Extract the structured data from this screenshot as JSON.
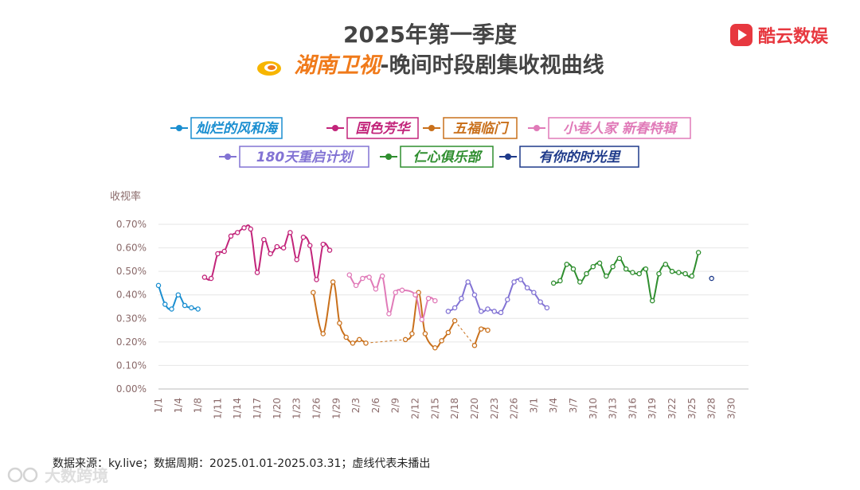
{
  "header": {
    "title_line1": "2025年第一季度",
    "channel_name": "湖南卫视",
    "title_rest": "-晚间时段剧集收视曲线"
  },
  "brand": {
    "name": "酷云数娱",
    "color": "#e7383f",
    "logo_icon": "play-icon"
  },
  "footer": {
    "text": "数据来源：ky.live；数据周期：2025.01.01-2025.03.31；虚线代表未播出"
  },
  "watermark": {
    "text": "大数跨境",
    "icon": "ring-logo-icon"
  },
  "chart_data": {
    "type": "line",
    "title": "2025年第一季度 湖南卫视-晚间时段剧集收视曲线",
    "ylabel": "收视率",
    "xlabel": "",
    "ylim": [
      0,
      0.7
    ],
    "y_ticks": [
      0,
      0.1,
      0.2,
      0.3,
      0.4,
      0.5,
      0.6,
      0.7
    ],
    "y_tick_labels": [
      "0.00%",
      "0.10%",
      "0.20%",
      "0.30%",
      "0.40%",
      "0.50%",
      "0.60%",
      "0.70%"
    ],
    "x_range": [
      0,
      89
    ],
    "x_ticks": [
      0,
      3,
      6,
      9,
      12,
      15,
      18,
      21,
      24,
      27,
      30,
      33,
      36,
      39,
      42,
      45,
      48,
      51,
      54,
      57,
      60,
      63,
      66,
      69,
      72,
      75,
      78,
      81,
      84,
      87
    ],
    "x_tick_labels": [
      "1/1",
      "1/4",
      "1/8",
      "1/11",
      "1/14",
      "1/17",
      "1/20",
      "1/23",
      "1/26",
      "1/29",
      "2/3",
      "2/6",
      "2/9",
      "2/12",
      "2/15",
      "2/18",
      "2/20",
      "2/23",
      "2/26",
      "3/1",
      "3/4",
      "3/7",
      "3/10",
      "3/13",
      "3/16",
      "3/19",
      "3/22",
      "3/25",
      "3/28",
      "3/30"
    ],
    "grid": true,
    "legend_position": "top",
    "series": [
      {
        "name": "灿烂的风和海",
        "color": "#1a8ed0",
        "points": [
          [
            0,
            0.44
          ],
          [
            1,
            0.36
          ],
          [
            2,
            0.34
          ],
          [
            3,
            0.4
          ],
          [
            4,
            0.355
          ],
          [
            5,
            0.345
          ],
          [
            6,
            0.34
          ]
        ]
      },
      {
        "name": "国色芳华",
        "color": "#c2247a",
        "points": [
          [
            7,
            0.475
          ],
          [
            8,
            0.47
          ],
          [
            9,
            0.575
          ],
          [
            10,
            0.585
          ],
          [
            11,
            0.65
          ],
          [
            12,
            0.665
          ],
          [
            13,
            0.685
          ],
          [
            14,
            0.68
          ],
          [
            15,
            0.495
          ],
          [
            16,
            0.635
          ],
          [
            17,
            0.575
          ],
          [
            18,
            0.605
          ],
          [
            19,
            0.6
          ],
          [
            20,
            0.665
          ],
          [
            21,
            0.55
          ],
          [
            22,
            0.645
          ],
          [
            23,
            0.61
          ],
          [
            24,
            0.465
          ],
          [
            25,
            0.615
          ],
          [
            26,
            0.59
          ]
        ]
      },
      {
        "name": "五福临门",
        "color": "#c9701b",
        "points": [
          [
            23.5,
            0.41
          ],
          [
            25,
            0.235
          ],
          [
            26.5,
            0.455
          ],
          [
            27.5,
            0.28
          ],
          [
            28.5,
            0.22
          ],
          [
            29.5,
            0.195
          ],
          [
            30.5,
            0.21
          ],
          [
            31.5,
            0.195
          ],
          [
            37.5,
            0.21
          ],
          [
            38.5,
            0.235
          ],
          [
            39.5,
            0.41
          ],
          [
            40.5,
            0.235
          ],
          [
            42,
            0.175
          ],
          [
            43,
            0.205
          ],
          [
            44,
            0.24
          ],
          [
            45,
            0.29
          ],
          [
            48,
            0.185
          ],
          [
            49,
            0.255
          ],
          [
            50,
            0.25
          ]
        ],
        "dashed_segments": [
          [
            31.5,
            37.5
          ],
          [
            45,
            48
          ]
        ]
      },
      {
        "name": "小巷人家 新春特辑",
        "color": "#e07ab8",
        "points": [
          [
            29,
            0.485
          ],
          [
            30,
            0.44
          ],
          [
            31,
            0.47
          ],
          [
            32,
            0.475
          ],
          [
            33,
            0.425
          ],
          [
            34,
            0.48
          ],
          [
            35,
            0.32
          ],
          [
            36,
            0.41
          ],
          [
            37,
            0.42
          ],
          [
            39,
            0.4
          ],
          [
            40,
            0.295
          ],
          [
            41,
            0.385
          ],
          [
            42,
            0.375
          ]
        ]
      },
      {
        "name": "180天重启计划",
        "color": "#8273d4",
        "points": [
          [
            44,
            0.33
          ],
          [
            45,
            0.345
          ],
          [
            46,
            0.385
          ],
          [
            47,
            0.455
          ],
          [
            48,
            0.4
          ],
          [
            49,
            0.33
          ],
          [
            50,
            0.34
          ],
          [
            51,
            0.33
          ],
          [
            52,
            0.325
          ],
          [
            53,
            0.38
          ],
          [
            54,
            0.455
          ],
          [
            55,
            0.465
          ],
          [
            56,
            0.43
          ],
          [
            57,
            0.41
          ],
          [
            58,
            0.37
          ],
          [
            59,
            0.345
          ]
        ]
      },
      {
        "name": "仁心俱乐部",
        "color": "#2f8e2f",
        "points": [
          [
            60,
            0.45
          ],
          [
            61,
            0.46
          ],
          [
            62,
            0.53
          ],
          [
            63,
            0.51
          ],
          [
            64,
            0.455
          ],
          [
            65,
            0.49
          ],
          [
            66,
            0.52
          ],
          [
            67,
            0.535
          ],
          [
            68,
            0.48
          ],
          [
            69,
            0.52
          ],
          [
            70,
            0.555
          ],
          [
            71,
            0.51
          ],
          [
            72,
            0.495
          ],
          [
            73,
            0.49
          ],
          [
            74,
            0.51
          ],
          [
            75,
            0.375
          ],
          [
            76,
            0.49
          ],
          [
            77,
            0.53
          ],
          [
            78,
            0.5
          ],
          [
            79,
            0.495
          ],
          [
            80,
            0.49
          ],
          [
            81,
            0.48
          ],
          [
            82,
            0.58
          ]
        ]
      },
      {
        "name": "有你的时光里",
        "color": "#1e3a8a",
        "points": [
          [
            84,
            0.47
          ]
        ]
      }
    ]
  }
}
